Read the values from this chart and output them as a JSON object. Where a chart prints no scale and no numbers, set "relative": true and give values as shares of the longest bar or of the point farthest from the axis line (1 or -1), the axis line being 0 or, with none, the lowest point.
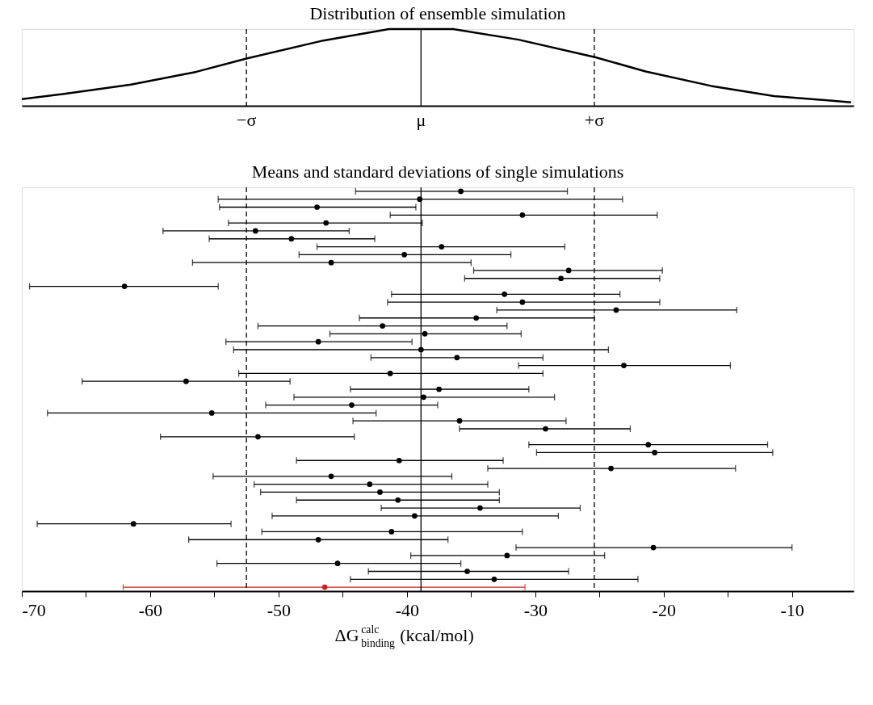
{
  "chart_data": [
    {
      "type": "line",
      "title": "Distribution of ensemble simulation",
      "relative": true,
      "tick_labels": false,
      "x": [
        -70,
        -66.7,
        -61.5,
        -56.4,
        -52.5,
        -46.5,
        -41.4,
        -36.4,
        -31.3,
        -25.3,
        -21.4,
        -16.3,
        -11.4,
        -5.4
      ],
      "series": [
        {
          "color": "#000000",
          "values": [
            0.086,
            0.155,
            0.276,
            0.443,
            0.615,
            0.851,
            1,
            1,
            0.862,
            0.632,
            0.448,
            0.259,
            0.126,
            0.046
          ]
        }
      ],
      "xlim": [
        -70,
        -5.2
      ],
      "ref_lines": [
        {
          "axis": "x",
          "value": -52.5,
          "label": "−σ",
          "color": "#000000",
          "line_style": "dashed"
        },
        {
          "axis": "x",
          "value": -38.9,
          "label": "μ",
          "color": "#000000",
          "line_style": "solid"
        },
        {
          "axis": "x",
          "value": -25.4,
          "label": "+σ",
          "color": "#000000",
          "line_style": "dashed"
        }
      ]
    },
    {
      "type": "scatter",
      "title": "Means and standard deviations of single simulations",
      "orientation": "horizontal",
      "marker": "circle",
      "tick_labels": "x",
      "xlabel": "ΔG$^{calc}$$_{binding}$ (kcal/mol)",
      "categories": [
        null,
        null,
        null,
        null,
        null,
        null,
        null,
        null,
        null,
        null,
        null,
        null,
        null,
        null,
        null,
        null,
        null,
        null,
        null,
        null,
        null,
        null,
        null,
        null,
        null,
        null,
        null,
        null,
        null,
        null,
        null,
        null,
        null,
        null,
        null,
        null,
        null,
        null,
        null,
        null,
        null,
        null,
        null,
        null,
        null,
        null,
        null,
        null,
        null,
        null,
        null
      ],
      "values": [
        -35.8,
        -39.0,
        -47.0,
        -31.0,
        -46.3,
        -51.8,
        -49.0,
        -37.3,
        -40.2,
        -45.9,
        -27.4,
        -28.0,
        -62.0,
        -32.4,
        -31.0,
        -23.7,
        -34.6,
        -41.9,
        -38.6,
        -46.9,
        -38.9,
        -36.1,
        -23.1,
        -41.3,
        -57.2,
        -37.5,
        -38.7,
        -44.3,
        -55.2,
        -35.9,
        -29.2,
        -51.6,
        -21.2,
        -20.7,
        -40.6,
        -24.1,
        -45.9,
        -42.9,
        -42.1,
        -40.7,
        -34.3,
        -39.4,
        -61.3,
        -41.2,
        -46.9,
        -20.8,
        -32.2,
        -45.4,
        -35.3,
        -33.2,
        -46.4
      ],
      "colors": [
        "#000000",
        "#000000",
        "#000000",
        "#000000",
        "#000000",
        "#000000",
        "#000000",
        "#000000",
        "#000000",
        "#000000",
        "#000000",
        "#000000",
        "#000000",
        "#000000",
        "#000000",
        "#000000",
        "#000000",
        "#000000",
        "#000000",
        "#000000",
        "#000000",
        "#000000",
        "#000000",
        "#000000",
        "#000000",
        "#000000",
        "#000000",
        "#000000",
        "#000000",
        "#000000",
        "#000000",
        "#000000",
        "#000000",
        "#000000",
        "#000000",
        "#000000",
        "#000000",
        "#000000",
        "#000000",
        "#000000",
        "#000000",
        "#000000",
        "#000000",
        "#000000",
        "#000000",
        "#000000",
        "#000000",
        "#000000",
        "#000000",
        "#000000",
        "#cc2222"
      ],
      "errors": [
        [
          -44.0,
          -27.5
        ],
        [
          -54.7,
          -23.2
        ],
        [
          -54.6,
          -39.3
        ],
        [
          -41.3,
          -20.5
        ],
        [
          -53.9,
          -38.8
        ],
        [
          -59.0,
          -44.5
        ],
        [
          -55.4,
          -42.5
        ],
        [
          -47.0,
          -27.7
        ],
        [
          -48.4,
          -31.9
        ],
        [
          -56.7,
          -35.0
        ],
        [
          -34.8,
          -20.1
        ],
        [
          -35.5,
          -20.3
        ],
        [
          -69.4,
          -54.7
        ],
        [
          -41.2,
          -23.4
        ],
        [
          -41.5,
          -20.3
        ],
        [
          -33.0,
          -14.3
        ],
        [
          -43.7,
          -25.4
        ],
        [
          -51.6,
          -32.2
        ],
        [
          -46.0,
          -31.1
        ],
        [
          -54.1,
          -39.6
        ],
        [
          -53.5,
          -24.3
        ],
        [
          -42.8,
          -29.4
        ],
        [
          -31.3,
          -14.8
        ],
        [
          -53.1,
          -29.4
        ],
        [
          -65.3,
          -49.1
        ],
        [
          -44.4,
          -30.5
        ],
        [
          -48.8,
          -28.5
        ],
        [
          -51.0,
          -37.6
        ],
        [
          -68.0,
          -42.4
        ],
        [
          -44.2,
          -27.6
        ],
        [
          -35.9,
          -22.6
        ],
        [
          -59.2,
          -44.1
        ],
        [
          -30.5,
          -11.9
        ],
        [
          -29.9,
          -11.5
        ],
        [
          -48.6,
          -32.5
        ],
        [
          -33.7,
          -14.4
        ],
        [
          -55.1,
          -36.5
        ],
        [
          -51.9,
          -33.7
        ],
        [
          -51.4,
          -32.8
        ],
        [
          -48.6,
          -32.8
        ],
        [
          -42.0,
          -26.5
        ],
        [
          -50.5,
          -28.2
        ],
        [
          -68.8,
          -53.7
        ],
        [
          -51.3,
          -31.0
        ],
        [
          -57.0,
          -36.8
        ],
        [
          -31.5,
          -10.0
        ],
        [
          -39.7,
          -24.6
        ],
        [
          -54.8,
          -35.8
        ],
        [
          -43.0,
          -27.4
        ],
        [
          -44.4,
          -22.0
        ],
        [
          -62.1,
          -30.8
        ]
      ],
      "xlim": [
        -70,
        -5.2
      ],
      "xticks": [
        -70,
        {
          "value": -65,
          "label": null
        },
        -60,
        {
          "value": -55,
          "label": null
        },
        -50,
        {
          "value": -45,
          "label": null
        },
        -40,
        {
          "value": -35,
          "label": null
        },
        -30,
        {
          "value": -25,
          "label": null
        },
        -20,
        {
          "value": -15,
          "label": null
        },
        -10
      ],
      "ref_lines": [
        {
          "axis": "x",
          "value": -52.5,
          "color": "#000000",
          "line_style": "dashed"
        },
        {
          "axis": "x",
          "value": -38.9,
          "color": "#000000",
          "line_style": "solid"
        },
        {
          "axis": "x",
          "value": -25.4,
          "color": "#000000",
          "line_style": "dashed"
        }
      ]
    }
  ]
}
